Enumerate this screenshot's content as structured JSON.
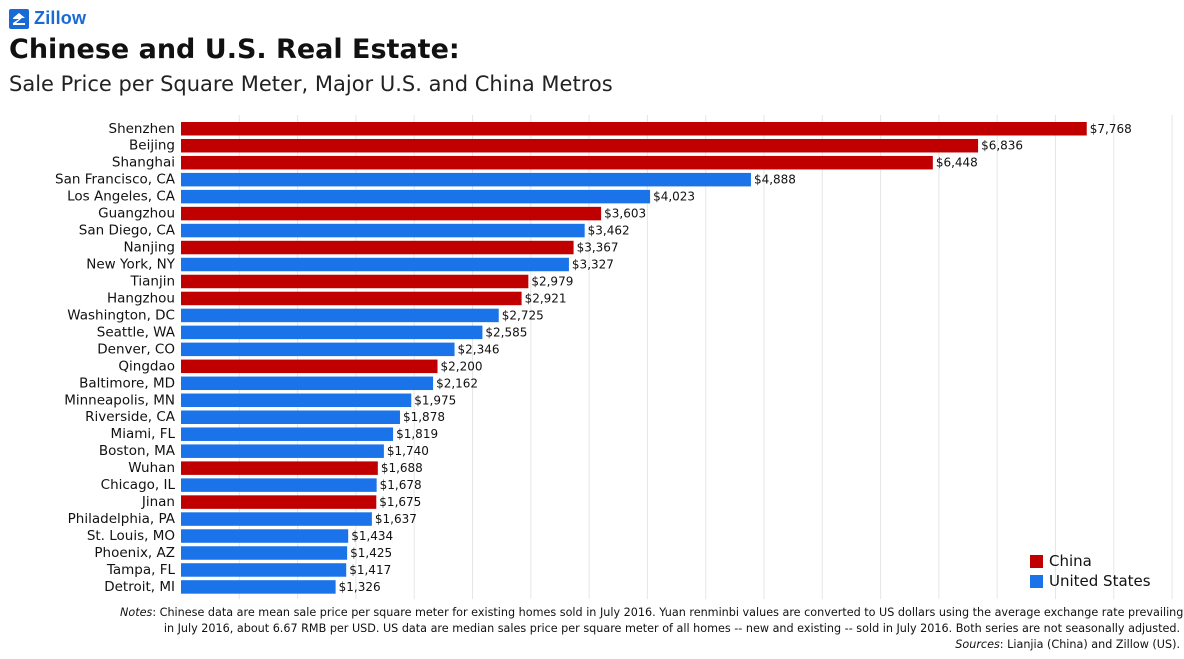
{
  "brand": {
    "name": "Zillow"
  },
  "header": {
    "title": "Chinese and U.S. Real Estate:",
    "subtitle": "Sale Price per Square Meter, Major U.S. and China Metros"
  },
  "colors": {
    "China": "#c00000",
    "United States": "#1a73e8"
  },
  "legend": {
    "items": [
      "China",
      "United States"
    ],
    "position": "bottom-right"
  },
  "chart_data": {
    "type": "bar",
    "orientation": "horizontal",
    "grid": true,
    "xlim": [
      0,
      8500
    ],
    "categories": [
      "Shenzhen",
      "Beijing",
      "Shanghai",
      "San Francisco, CA",
      "Los Angeles, CA",
      "Guangzhou",
      "San Diego, CA",
      "Nanjing",
      "New York, NY",
      "Tianjin",
      "Hangzhou",
      "Washington, DC",
      "Seattle, WA",
      "Denver, CO",
      "Qingdao",
      "Baltimore, MD",
      "Minneapolis, MN",
      "Riverside, CA",
      "Miami, FL",
      "Boston, MA",
      "Wuhan",
      "Chicago, IL",
      "Jinan",
      "Philadelphia, PA",
      "St. Louis, MO",
      "Phoenix, AZ",
      "Tampa, FL",
      "Detroit, MI"
    ],
    "values": [
      7768,
      6836,
      6448,
      4888,
      4023,
      3603,
      3462,
      3367,
      3327,
      2979,
      2921,
      2725,
      2585,
      2346,
      2200,
      2162,
      1975,
      1878,
      1819,
      1740,
      1688,
      1678,
      1675,
      1637,
      1434,
      1425,
      1417,
      1326
    ],
    "value_labels": [
      "$7,768",
      "$6,836",
      "$6,448",
      "$4,888",
      "$4,023",
      "$3,603",
      "$3,462",
      "$3,367",
      "$3,327",
      "$2,979",
      "$2,921",
      "$2,725",
      "$2,585",
      "$2,346",
      "$2,200",
      "$2,162",
      "$1,975",
      "$1,878",
      "$1,819",
      "$1,740",
      "$1,688",
      "$1,678",
      "$1,675",
      "$1,637",
      "$1,434",
      "$1,425",
      "$1,417",
      "$1,326"
    ],
    "groups": [
      "China",
      "China",
      "China",
      "United States",
      "United States",
      "China",
      "United States",
      "China",
      "United States",
      "China",
      "China",
      "United States",
      "United States",
      "United States",
      "China",
      "United States",
      "United States",
      "United States",
      "United States",
      "United States",
      "China",
      "United States",
      "China",
      "United States",
      "United States",
      "United States",
      "United States",
      "United States"
    ]
  },
  "notes": {
    "notes_label": "Notes",
    "line1": ": Chinese data are mean sale price per square meter for existing homes sold in July 2016. Yuan renminbi values are converted to US dollars using the average exchange rate prevailing",
    "line2": "in July 2016, about 6.67 RMB per USD. US data are median sales price per square meter of all homes -- new and existing -- sold in July 2016. Both series are not seasonally adjusted.",
    "sources_label": "Sources",
    "sources_text": ": Lianjia (China) and Zillow (US)."
  }
}
